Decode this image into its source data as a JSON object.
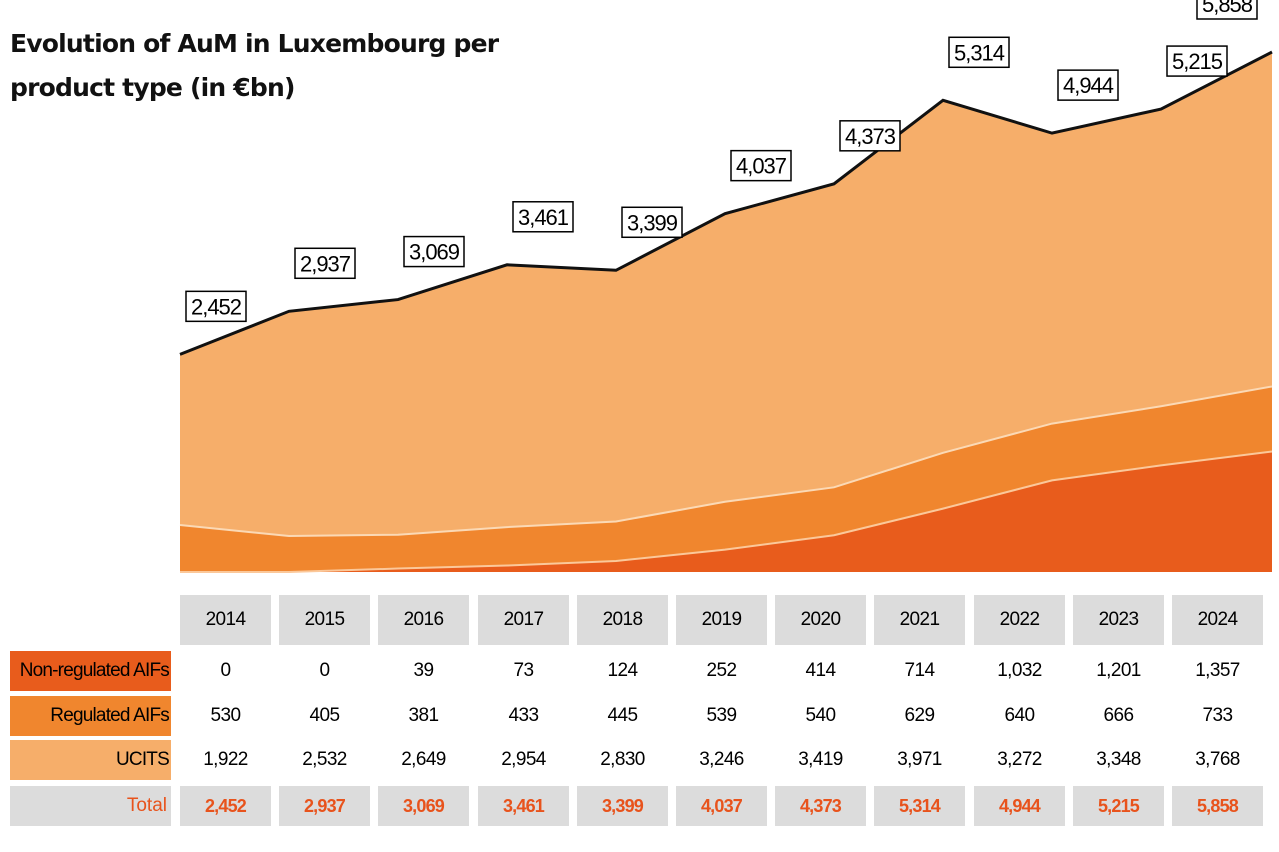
{
  "title_lines": [
    "Evolution of AuM in Luxembourg per",
    "product type (in €bn)"
  ],
  "colors": {
    "nonreg": "#e85c1c",
    "reg": "#f0862e",
    "ucits": "#f6ae6a",
    "total_line": "#111111",
    "total_text": "#e8531c",
    "header_bg": "#dcdcdc"
  },
  "chart_data": {
    "type": "area",
    "stacked": true,
    "title": "Evolution of AuM in Luxembourg per product type (in €bn)",
    "categories": [
      "2014",
      "2015",
      "2016",
      "2017",
      "2018",
      "2019",
      "2020",
      "2021",
      "2022",
      "2023",
      "2024"
    ],
    "series": [
      {
        "name": "Non-regulated AIFs",
        "values": [
          0,
          0,
          39,
          73,
          124,
          252,
          414,
          714,
          1032,
          1201,
          1357
        ],
        "labels": [
          "0",
          "0",
          "39",
          "73",
          "124",
          "252",
          "414",
          "714",
          "1,032",
          "1,201",
          "1,357"
        ]
      },
      {
        "name": "Regulated AIFs",
        "values": [
          530,
          405,
          381,
          433,
          445,
          539,
          540,
          629,
          640,
          666,
          733
        ],
        "labels": [
          "530",
          "405",
          "381",
          "433",
          "445",
          "539",
          "540",
          "629",
          "640",
          "666",
          "733"
        ]
      },
      {
        "name": "UCITS",
        "values": [
          1922,
          2532,
          2649,
          2954,
          2830,
          3246,
          3419,
          3971,
          3272,
          3348,
          3768
        ],
        "labels": [
          "1,922",
          "2,532",
          "2,649",
          "2,954",
          "2,830",
          "3,246",
          "3,419",
          "3,971",
          "3,272",
          "3,348",
          "3,768"
        ]
      }
    ],
    "totals": {
      "name": "Total",
      "values": [
        2452,
        2937,
        3069,
        3461,
        3399,
        4037,
        4373,
        5314,
        4944,
        5215,
        5858
      ],
      "labels": [
        "2,452",
        "2,937",
        "3,069",
        "3,461",
        "3,399",
        "4,037",
        "4,373",
        "5,314",
        "4,944",
        "5,215",
        "5,858"
      ]
    }
  }
}
